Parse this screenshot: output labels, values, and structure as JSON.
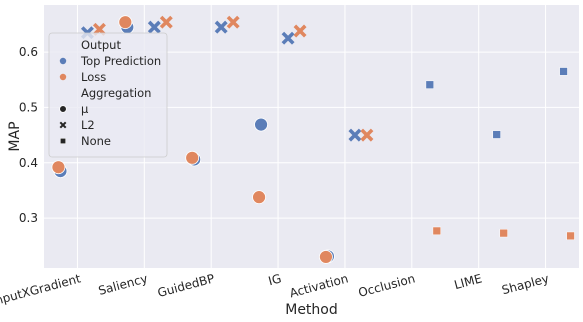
{
  "chart_data": {
    "type": "scatter",
    "xlabel": "Method",
    "ylabel": "MAP",
    "categories": [
      "InputXGradient",
      "Saliency",
      "GuidedBP",
      "IG",
      "Activation",
      "Occlusion",
      "LIME",
      "Shapley"
    ],
    "ylim": [
      0.21,
      0.685
    ],
    "yticks": [
      0.3,
      0.4,
      0.5,
      0.6
    ],
    "ytick_labels": [
      "0.3",
      "0.4",
      "0.5",
      "0.6"
    ],
    "grid": true,
    "legend_position": "upper-left",
    "colors": {
      "top_prediction": "#5b7db8",
      "loss": "#e0875f",
      "background": "#eaeaf2",
      "grid": "#ffffff",
      "legend_marker": "#262626"
    },
    "legend": {
      "hue_title": "Output",
      "style_title": "Aggregation",
      "hue_entries": [
        {
          "key": "top_prediction",
          "label": "Top Prediction"
        },
        {
          "key": "loss",
          "label": "Loss"
        }
      ],
      "style_entries": [
        {
          "marker": "circle",
          "label": "μ"
        },
        {
          "marker": "x",
          "label": "L2"
        },
        {
          "marker": "square",
          "label": "None"
        }
      ]
    },
    "points": [
      {
        "category": "InputXGradient",
        "series": "top_prediction",
        "aggregation": "circle",
        "y": 0.385
      },
      {
        "category": "InputXGradient",
        "series": "loss",
        "aggregation": "circle",
        "y": 0.392
      },
      {
        "category": "InputXGradient",
        "series": "top_prediction",
        "aggregation": "x",
        "y": 0.635
      },
      {
        "category": "InputXGradient",
        "series": "loss",
        "aggregation": "x",
        "y": 0.641
      },
      {
        "category": "Saliency",
        "series": "top_prediction",
        "aggregation": "circle",
        "y": 0.645
      },
      {
        "category": "Saliency",
        "series": "loss",
        "aggregation": "circle",
        "y": 0.654
      },
      {
        "category": "Saliency",
        "series": "top_prediction",
        "aggregation": "x",
        "y": 0.645
      },
      {
        "category": "Saliency",
        "series": "loss",
        "aggregation": "x",
        "y": 0.654
      },
      {
        "category": "GuidedBP",
        "series": "top_prediction",
        "aggregation": "circle",
        "y": 0.406
      },
      {
        "category": "GuidedBP",
        "series": "loss",
        "aggregation": "circle",
        "y": 0.409
      },
      {
        "category": "GuidedBP",
        "series": "top_prediction",
        "aggregation": "x",
        "y": 0.645
      },
      {
        "category": "GuidedBP",
        "series": "loss",
        "aggregation": "x",
        "y": 0.654
      },
      {
        "category": "IG",
        "series": "top_prediction",
        "aggregation": "circle",
        "y": 0.469
      },
      {
        "category": "IG",
        "series": "loss",
        "aggregation": "circle",
        "y": 0.338
      },
      {
        "category": "IG",
        "series": "top_prediction",
        "aggregation": "x",
        "y": 0.625
      },
      {
        "category": "IG",
        "series": "loss",
        "aggregation": "x",
        "y": 0.638
      },
      {
        "category": "Activation",
        "series": "top_prediction",
        "aggregation": "circle",
        "y": 0.231
      },
      {
        "category": "Activation",
        "series": "loss",
        "aggregation": "circle",
        "y": 0.23
      },
      {
        "category": "Activation",
        "series": "top_prediction",
        "aggregation": "x",
        "y": 0.45
      },
      {
        "category": "Activation",
        "series": "loss",
        "aggregation": "x",
        "y": 0.45
      },
      {
        "category": "Occlusion",
        "series": "top_prediction",
        "aggregation": "square",
        "y": 0.541
      },
      {
        "category": "Occlusion",
        "series": "loss",
        "aggregation": "square",
        "y": 0.277
      },
      {
        "category": "LIME",
        "series": "top_prediction",
        "aggregation": "square",
        "y": 0.451
      },
      {
        "category": "LIME",
        "series": "loss",
        "aggregation": "square",
        "y": 0.273
      },
      {
        "category": "Shapley",
        "series": "top_prediction",
        "aggregation": "square",
        "y": 0.565
      },
      {
        "category": "Shapley",
        "series": "loss",
        "aggregation": "square",
        "y": 0.268
      }
    ]
  }
}
